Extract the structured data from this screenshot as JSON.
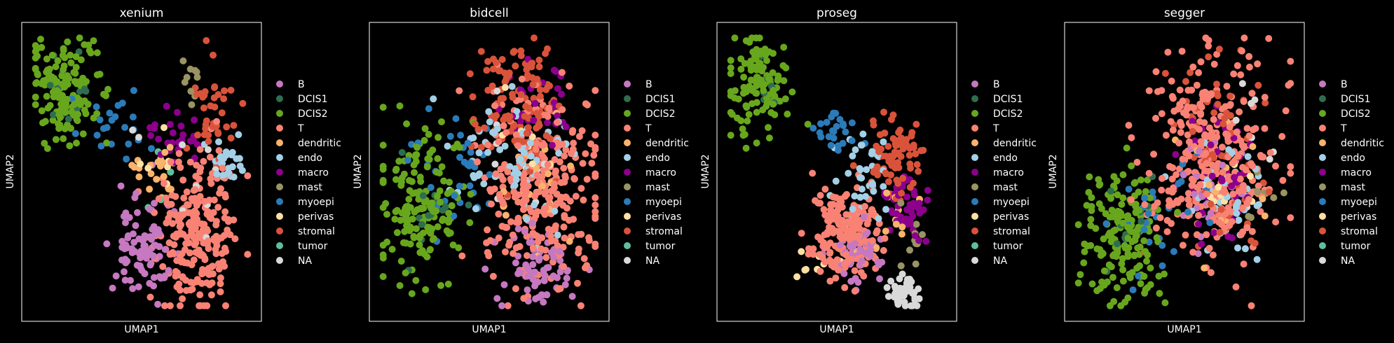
{
  "chart_data": {
    "type": "scatter",
    "x_label": "UMAP1",
    "y_label": "UMAP2",
    "legend": {
      "placement": "right",
      "entries": [
        {
          "label": "B",
          "color": "#c678c0"
        },
        {
          "label": "DCIS1",
          "color": "#2e6e4f"
        },
        {
          "label": "DCIS2",
          "color": "#68a71d"
        },
        {
          "label": "T",
          "color": "#f98274"
        },
        {
          "label": "dendritic",
          "color": "#f9b36b"
        },
        {
          "label": "endo",
          "color": "#a3d0e6"
        },
        {
          "label": "macro",
          "color": "#8c008c"
        },
        {
          "label": "mast",
          "color": "#9a9363"
        },
        {
          "label": "myoepi",
          "color": "#2b7bb9"
        },
        {
          "label": "perivas",
          "color": "#ffe0a3"
        },
        {
          "label": "stromal",
          "color": "#d9533a"
        },
        {
          "label": "tumor",
          "color": "#5fbf9c"
        },
        {
          "label": "NA",
          "color": "#d9d9d9"
        }
      ]
    },
    "panels": [
      {
        "title": "xenium",
        "seed": 11,
        "clusters": [
          {
            "type": "DCIS2",
            "n": 150,
            "cx": 0.16,
            "cy": 0.22,
            "sx": 0.08,
            "sy": 0.09
          },
          {
            "type": "DCIS1",
            "n": 12,
            "cx": 0.2,
            "cy": 0.24,
            "sx": 0.07,
            "sy": 0.07
          },
          {
            "type": "myoepi",
            "n": 22,
            "cx": 0.38,
            "cy": 0.33,
            "sx": 0.07,
            "sy": 0.05
          },
          {
            "type": "macro",
            "n": 25,
            "cx": 0.66,
            "cy": 0.36,
            "sx": 0.06,
            "sy": 0.05
          },
          {
            "type": "mast",
            "n": 10,
            "cx": 0.72,
            "cy": 0.18,
            "sx": 0.03,
            "sy": 0.05
          },
          {
            "type": "stromal",
            "n": 40,
            "cx": 0.82,
            "cy": 0.28,
            "sx": 0.05,
            "sy": 0.08
          },
          {
            "type": "endo",
            "n": 28,
            "cx": 0.88,
            "cy": 0.46,
            "sx": 0.04,
            "sy": 0.04
          },
          {
            "type": "dendritic",
            "n": 22,
            "cx": 0.58,
            "cy": 0.5,
            "sx": 0.06,
            "sy": 0.05
          },
          {
            "type": "perivas",
            "n": 6,
            "cx": 0.55,
            "cy": 0.47,
            "sx": 0.06,
            "sy": 0.05
          },
          {
            "type": "T",
            "n": 240,
            "cx": 0.74,
            "cy": 0.72,
            "sx": 0.09,
            "sy": 0.13
          },
          {
            "type": "B",
            "n": 90,
            "cx": 0.5,
            "cy": 0.75,
            "sx": 0.07,
            "sy": 0.09
          },
          {
            "type": "NA",
            "n": 10,
            "cx": 0.7,
            "cy": 0.5,
            "sx": 0.1,
            "sy": 0.12
          },
          {
            "type": "tumor",
            "n": 4,
            "cx": 0.6,
            "cy": 0.55,
            "sx": 0.05,
            "sy": 0.05
          }
        ]
      },
      {
        "title": "bidcell",
        "seed": 23,
        "clusters": [
          {
            "type": "DCIS2",
            "n": 170,
            "cx": 0.2,
            "cy": 0.6,
            "sx": 0.09,
            "sy": 0.13
          },
          {
            "type": "DCIS1",
            "n": 14,
            "cx": 0.22,
            "cy": 0.62,
            "sx": 0.08,
            "sy": 0.1
          },
          {
            "type": "myoepi",
            "n": 35,
            "cx": 0.36,
            "cy": 0.5,
            "sx": 0.08,
            "sy": 0.1
          },
          {
            "type": "stromal",
            "n": 120,
            "cx": 0.62,
            "cy": 0.25,
            "sx": 0.1,
            "sy": 0.12
          },
          {
            "type": "macro",
            "n": 30,
            "cx": 0.72,
            "cy": 0.25,
            "sx": 0.08,
            "sy": 0.1
          },
          {
            "type": "endo",
            "n": 70,
            "cx": 0.6,
            "cy": 0.45,
            "sx": 0.12,
            "sy": 0.12
          },
          {
            "type": "T",
            "n": 300,
            "cx": 0.72,
            "cy": 0.55,
            "sx": 0.13,
            "sy": 0.17
          },
          {
            "type": "dendritic",
            "n": 25,
            "cx": 0.7,
            "cy": 0.55,
            "sx": 0.1,
            "sy": 0.12
          },
          {
            "type": "B",
            "n": 70,
            "cx": 0.72,
            "cy": 0.85,
            "sx": 0.08,
            "sy": 0.07
          },
          {
            "type": "NA",
            "n": 12,
            "cx": 0.7,
            "cy": 0.4,
            "sx": 0.12,
            "sy": 0.15
          },
          {
            "type": "perivas",
            "n": 8,
            "cx": 0.6,
            "cy": 0.35,
            "sx": 0.1,
            "sy": 0.1
          }
        ]
      },
      {
        "title": "proseg",
        "seed": 37,
        "clusters": [
          {
            "type": "DCIS2",
            "n": 120,
            "cx": 0.16,
            "cy": 0.18,
            "sx": 0.07,
            "sy": 0.09
          },
          {
            "type": "DCIS1",
            "n": 10,
            "cx": 0.18,
            "cy": 0.2,
            "sx": 0.06,
            "sy": 0.07
          },
          {
            "type": "myoepi",
            "n": 25,
            "cx": 0.5,
            "cy": 0.36,
            "sx": 0.06,
            "sy": 0.04
          },
          {
            "type": "stromal",
            "n": 80,
            "cx": 0.76,
            "cy": 0.45,
            "sx": 0.06,
            "sy": 0.07
          },
          {
            "type": "endo",
            "n": 40,
            "cx": 0.62,
            "cy": 0.52,
            "sx": 0.06,
            "sy": 0.08
          },
          {
            "type": "macro",
            "n": 50,
            "cx": 0.82,
            "cy": 0.63,
            "sx": 0.05,
            "sy": 0.05
          },
          {
            "type": "T",
            "n": 200,
            "cx": 0.54,
            "cy": 0.7,
            "sx": 0.08,
            "sy": 0.08
          },
          {
            "type": "B",
            "n": 60,
            "cx": 0.6,
            "cy": 0.78,
            "sx": 0.05,
            "sy": 0.05
          },
          {
            "type": "dendritic",
            "n": 15,
            "cx": 0.72,
            "cy": 0.66,
            "sx": 0.06,
            "sy": 0.06
          },
          {
            "type": "mast",
            "n": 10,
            "cx": 0.84,
            "cy": 0.76,
            "sx": 0.03,
            "sy": 0.05
          },
          {
            "type": "NA",
            "n": 50,
            "cx": 0.8,
            "cy": 0.93,
            "sx": 0.03,
            "sy": 0.03
          },
          {
            "type": "perivas",
            "n": 8,
            "cx": 0.4,
            "cy": 0.8,
            "sx": 0.06,
            "sy": 0.05
          }
        ]
      },
      {
        "title": "segger",
        "seed": 51,
        "clusters": [
          {
            "type": "DCIS2",
            "n": 170,
            "cx": 0.22,
            "cy": 0.72,
            "sx": 0.09,
            "sy": 0.12
          },
          {
            "type": "DCIS1",
            "n": 12,
            "cx": 0.24,
            "cy": 0.7,
            "sx": 0.08,
            "sy": 0.12
          },
          {
            "type": "myoepi",
            "n": 30,
            "cx": 0.4,
            "cy": 0.65,
            "sx": 0.1,
            "sy": 0.12
          },
          {
            "type": "T",
            "n": 320,
            "cx": 0.62,
            "cy": 0.45,
            "sx": 0.14,
            "sy": 0.18
          },
          {
            "type": "macro",
            "n": 50,
            "cx": 0.66,
            "cy": 0.5,
            "sx": 0.1,
            "sy": 0.14
          },
          {
            "type": "endo",
            "n": 40,
            "cx": 0.72,
            "cy": 0.6,
            "sx": 0.1,
            "sy": 0.1
          },
          {
            "type": "stromal",
            "n": 70,
            "cx": 0.66,
            "cy": 0.45,
            "sx": 0.12,
            "sy": 0.18
          },
          {
            "type": "B",
            "n": 30,
            "cx": 0.6,
            "cy": 0.55,
            "sx": 0.08,
            "sy": 0.1
          },
          {
            "type": "mast",
            "n": 10,
            "cx": 0.86,
            "cy": 0.55,
            "sx": 0.04,
            "sy": 0.05
          },
          {
            "type": "dendritic",
            "n": 15,
            "cx": 0.7,
            "cy": 0.55,
            "sx": 0.1,
            "sy": 0.12
          },
          {
            "type": "perivas",
            "n": 8,
            "cx": 0.68,
            "cy": 0.5,
            "sx": 0.1,
            "sy": 0.12
          },
          {
            "type": "NA",
            "n": 10,
            "cx": 0.75,
            "cy": 0.4,
            "sx": 0.1,
            "sy": 0.15
          }
        ]
      }
    ]
  }
}
